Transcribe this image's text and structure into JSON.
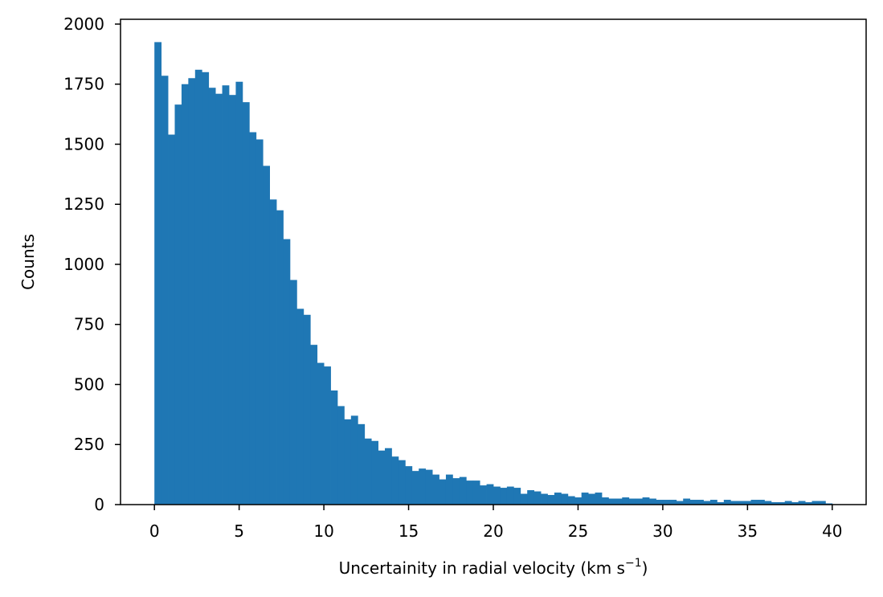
{
  "chart_data": {
    "type": "bar",
    "xlabel_main": "Uncertainity in radial velocity (km s",
    "xlabel_sup": "−1",
    "xlabel_close": ")",
    "ylabel": "Counts",
    "xlim": [
      -2,
      42
    ],
    "ylim": [
      0,
      2020
    ],
    "xticks": [
      0,
      5,
      10,
      15,
      20,
      25,
      30,
      35,
      40
    ],
    "yticks": [
      0,
      250,
      500,
      750,
      1000,
      1250,
      1500,
      1750,
      2000
    ],
    "bin_start": 0,
    "bin_width": 0.4,
    "color": "#1f77b4",
    "values": [
      1925,
      1785,
      1540,
      1665,
      1750,
      1775,
      1810,
      1800,
      1735,
      1710,
      1745,
      1705,
      1760,
      1675,
      1550,
      1520,
      1410,
      1270,
      1225,
      1105,
      935,
      815,
      790,
      665,
      590,
      575,
      475,
      410,
      355,
      370,
      335,
      275,
      265,
      225,
      235,
      200,
      185,
      160,
      140,
      150,
      145,
      125,
      105,
      125,
      110,
      115,
      100,
      100,
      80,
      85,
      75,
      70,
      75,
      70,
      45,
      60,
      55,
      45,
      40,
      50,
      45,
      35,
      30,
      50,
      45,
      50,
      30,
      25,
      25,
      30,
      25,
      25,
      30,
      25,
      20,
      20,
      20,
      15,
      25,
      20,
      20,
      15,
      20,
      10,
      20,
      15,
      15,
      15,
      20,
      20,
      15,
      10,
      10,
      15,
      10,
      15,
      10,
      15,
      15,
      5
    ]
  }
}
